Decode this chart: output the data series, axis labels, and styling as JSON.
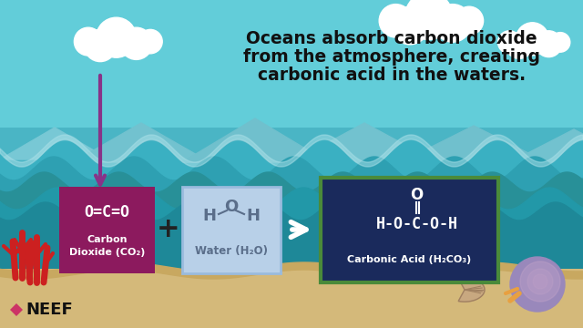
{
  "bg_sky_color": "#62cdd9",
  "bg_ocean_top": "#4db8c8",
  "bg_ocean_mid": "#3aacbc",
  "bg_ocean_deep": "#2a9aaa",
  "bg_sand_color": "#d4b97a",
  "title_line1": "Oceans absorb carbon dioxide",
  "title_line2": "from the atmosphere, creating",
  "title_line3": "carbonic acid in the waters.",
  "title_color": "#111111",
  "title_fontsize": 13.5,
  "box1_color": "#8c1a5e",
  "box2_color": "#b8d0e8",
  "box3_color": "#1a2a5c",
  "box3_border": "#4a8a3a",
  "arrow_down_color": "#883388",
  "wave_dark": "#2a8090",
  "wave_mid": "#3898aa",
  "wave_light": "#5ab5c5",
  "mountain_color": "#78c0cc",
  "cloud_color": "#ffffff",
  "coral_color": "#cc2222",
  "sand_color": "#d4b87a",
  "neef_diamond_color": "#cc3366",
  "neef_text_color": "#111111"
}
